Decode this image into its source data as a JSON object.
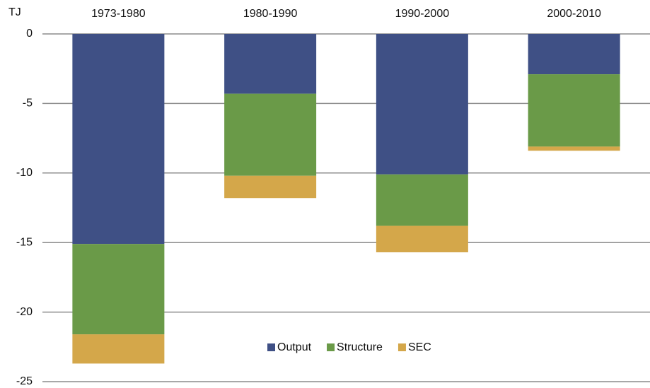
{
  "chart_data": {
    "type": "stacked_bar",
    "y_label": "TJ",
    "categories": [
      "1973-1980",
      "1980-1990",
      "1990-2000",
      "2000-2010"
    ],
    "series": [
      {
        "name": "Output",
        "color": "#3f5085",
        "values": [
          -15.1,
          -4.3,
          -10.1,
          -2.9
        ]
      },
      {
        "name": "Structure",
        "color": "#6a9a48",
        "values": [
          -6.5,
          -5.9,
          -3.7,
          -5.2
        ]
      },
      {
        "name": "SEC",
        "color": "#d4a74a",
        "values": [
          -2.1,
          -1.6,
          -1.9,
          -0.3
        ]
      }
    ],
    "ylim": [
      -25,
      0
    ],
    "yticks": [
      0,
      -5,
      -10,
      -15,
      -20,
      -25
    ],
    "grid": true,
    "legend": "bottom"
  }
}
